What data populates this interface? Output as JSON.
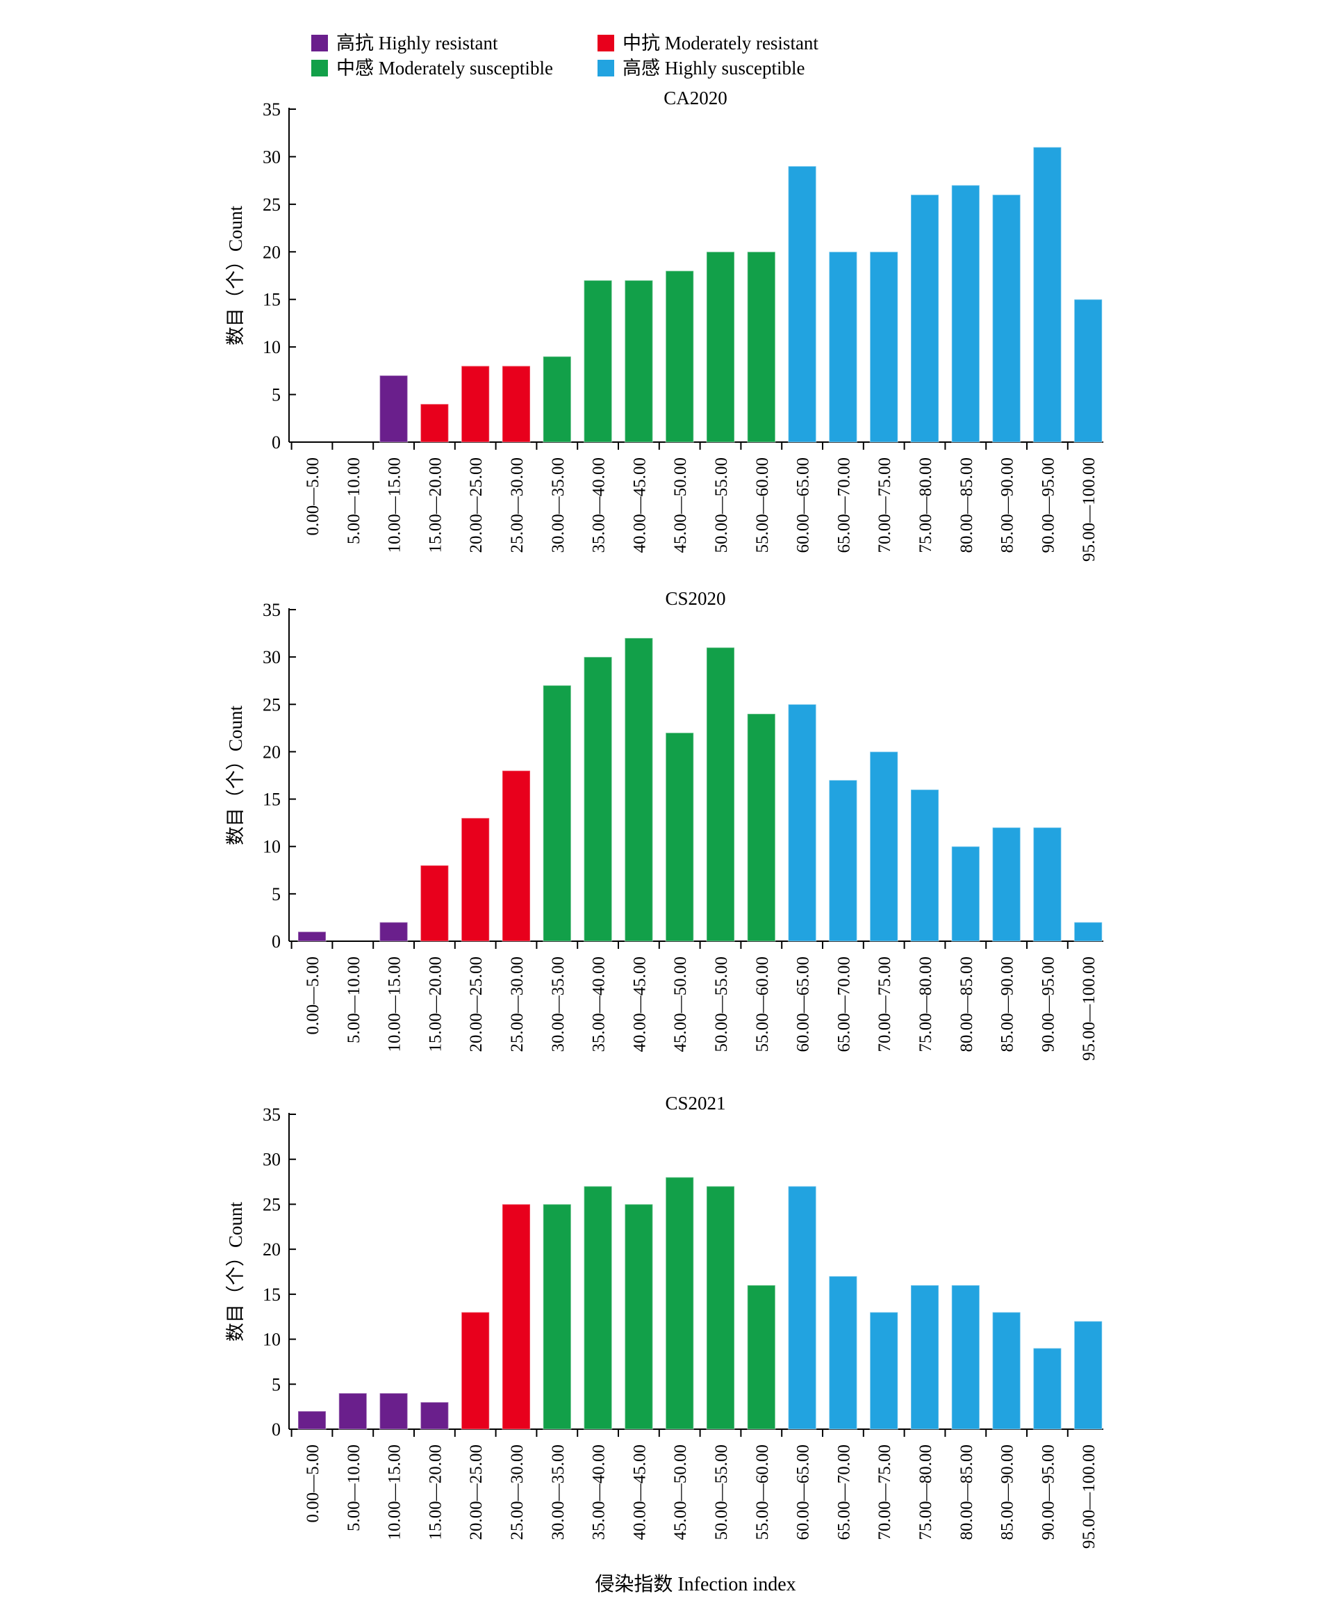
{
  "legend": {
    "items": [
      {
        "label": "高抗 Highly resistant",
        "color": "#6a1f8c"
      },
      {
        "label": "中抗 Moderately resistant",
        "color": "#e8001c"
      },
      {
        "label": "中感 Moderately susceptible",
        "color": "#12a049"
      },
      {
        "label": "高感 Highly susceptible",
        "color": "#22a3e0"
      }
    ]
  },
  "chart_data": [
    {
      "type": "bar",
      "title": "CA2020",
      "ylabel": "数目（个）Count",
      "xlabel": "",
      "ylim": [
        0,
        35
      ],
      "yticks": [
        0,
        5,
        10,
        15,
        20,
        25,
        30,
        35
      ],
      "categories": [
        "0.00—5.00",
        "5.00—10.00",
        "10.00—15.00",
        "15.00—20.00",
        "20.00—25.00",
        "25.00—30.00",
        "30.00—35.00",
        "35.00—40.00",
        "40.00—45.00",
        "45.00—50.00",
        "50.00—55.00",
        "55.00—60.00",
        "60.00—65.00",
        "65.00—70.00",
        "70.00—75.00",
        "75.00—80.00",
        "80.00—85.00",
        "85.00—90.00",
        "90.00—95.00",
        "95.00—100.00"
      ],
      "values": [
        0,
        0,
        7,
        4,
        8,
        8,
        9,
        17,
        17,
        18,
        20,
        20,
        29,
        20,
        20,
        26,
        27,
        26,
        31,
        15
      ],
      "groups": [
        0,
        0,
        0,
        1,
        1,
        1,
        2,
        2,
        2,
        2,
        2,
        2,
        3,
        3,
        3,
        3,
        3,
        3,
        3,
        3
      ]
    },
    {
      "type": "bar",
      "title": "CS2020",
      "ylabel": "数目（个）Count",
      "xlabel": "",
      "ylim": [
        0,
        35
      ],
      "yticks": [
        0,
        5,
        10,
        15,
        20,
        25,
        30,
        35
      ],
      "categories": [
        "0.00—5.00",
        "5.00—10.00",
        "10.00—15.00",
        "15.00—20.00",
        "20.00—25.00",
        "25.00—30.00",
        "30.00—35.00",
        "35.00—40.00",
        "40.00—45.00",
        "45.00—50.00",
        "50.00—55.00",
        "55.00—60.00",
        "60.00—65.00",
        "65.00—70.00",
        "70.00—75.00",
        "75.00—80.00",
        "80.00—85.00",
        "85.00—90.00",
        "90.00—95.00",
        "95.00—100.00"
      ],
      "values": [
        1,
        0,
        2,
        8,
        13,
        18,
        27,
        30,
        32,
        22,
        31,
        24,
        25,
        17,
        20,
        16,
        10,
        12,
        12,
        2
      ],
      "groups": [
        0,
        0,
        0,
        1,
        1,
        1,
        2,
        2,
        2,
        2,
        2,
        2,
        3,
        3,
        3,
        3,
        3,
        3,
        3,
        3
      ]
    },
    {
      "type": "bar",
      "title": "CS2021",
      "ylabel": "数目（个）Count",
      "xlabel": "侵染指数 Infection index",
      "ylim": [
        0,
        35
      ],
      "yticks": [
        0,
        5,
        10,
        15,
        20,
        25,
        30,
        35
      ],
      "categories": [
        "0.00—5.00",
        "5.00—10.00",
        "10.00—15.00",
        "15.00—20.00",
        "20.00—25.00",
        "25.00—30.00",
        "30.00—35.00",
        "35.00—40.00",
        "40.00—45.00",
        "45.00—50.00",
        "50.00—55.00",
        "55.00—60.00",
        "60.00—65.00",
        "65.00—70.00",
        "70.00—75.00",
        "75.00—80.00",
        "80.00—85.00",
        "85.00—90.00",
        "90.00—95.00",
        "95.00—100.00"
      ],
      "values": [
        2,
        4,
        4,
        3,
        13,
        25,
        25,
        27,
        25,
        28,
        27,
        16,
        27,
        17,
        13,
        16,
        16,
        13,
        9,
        12
      ],
      "groups": [
        0,
        0,
        0,
        0,
        1,
        1,
        2,
        2,
        2,
        2,
        2,
        2,
        3,
        3,
        3,
        3,
        3,
        3,
        3,
        3
      ]
    }
  ]
}
